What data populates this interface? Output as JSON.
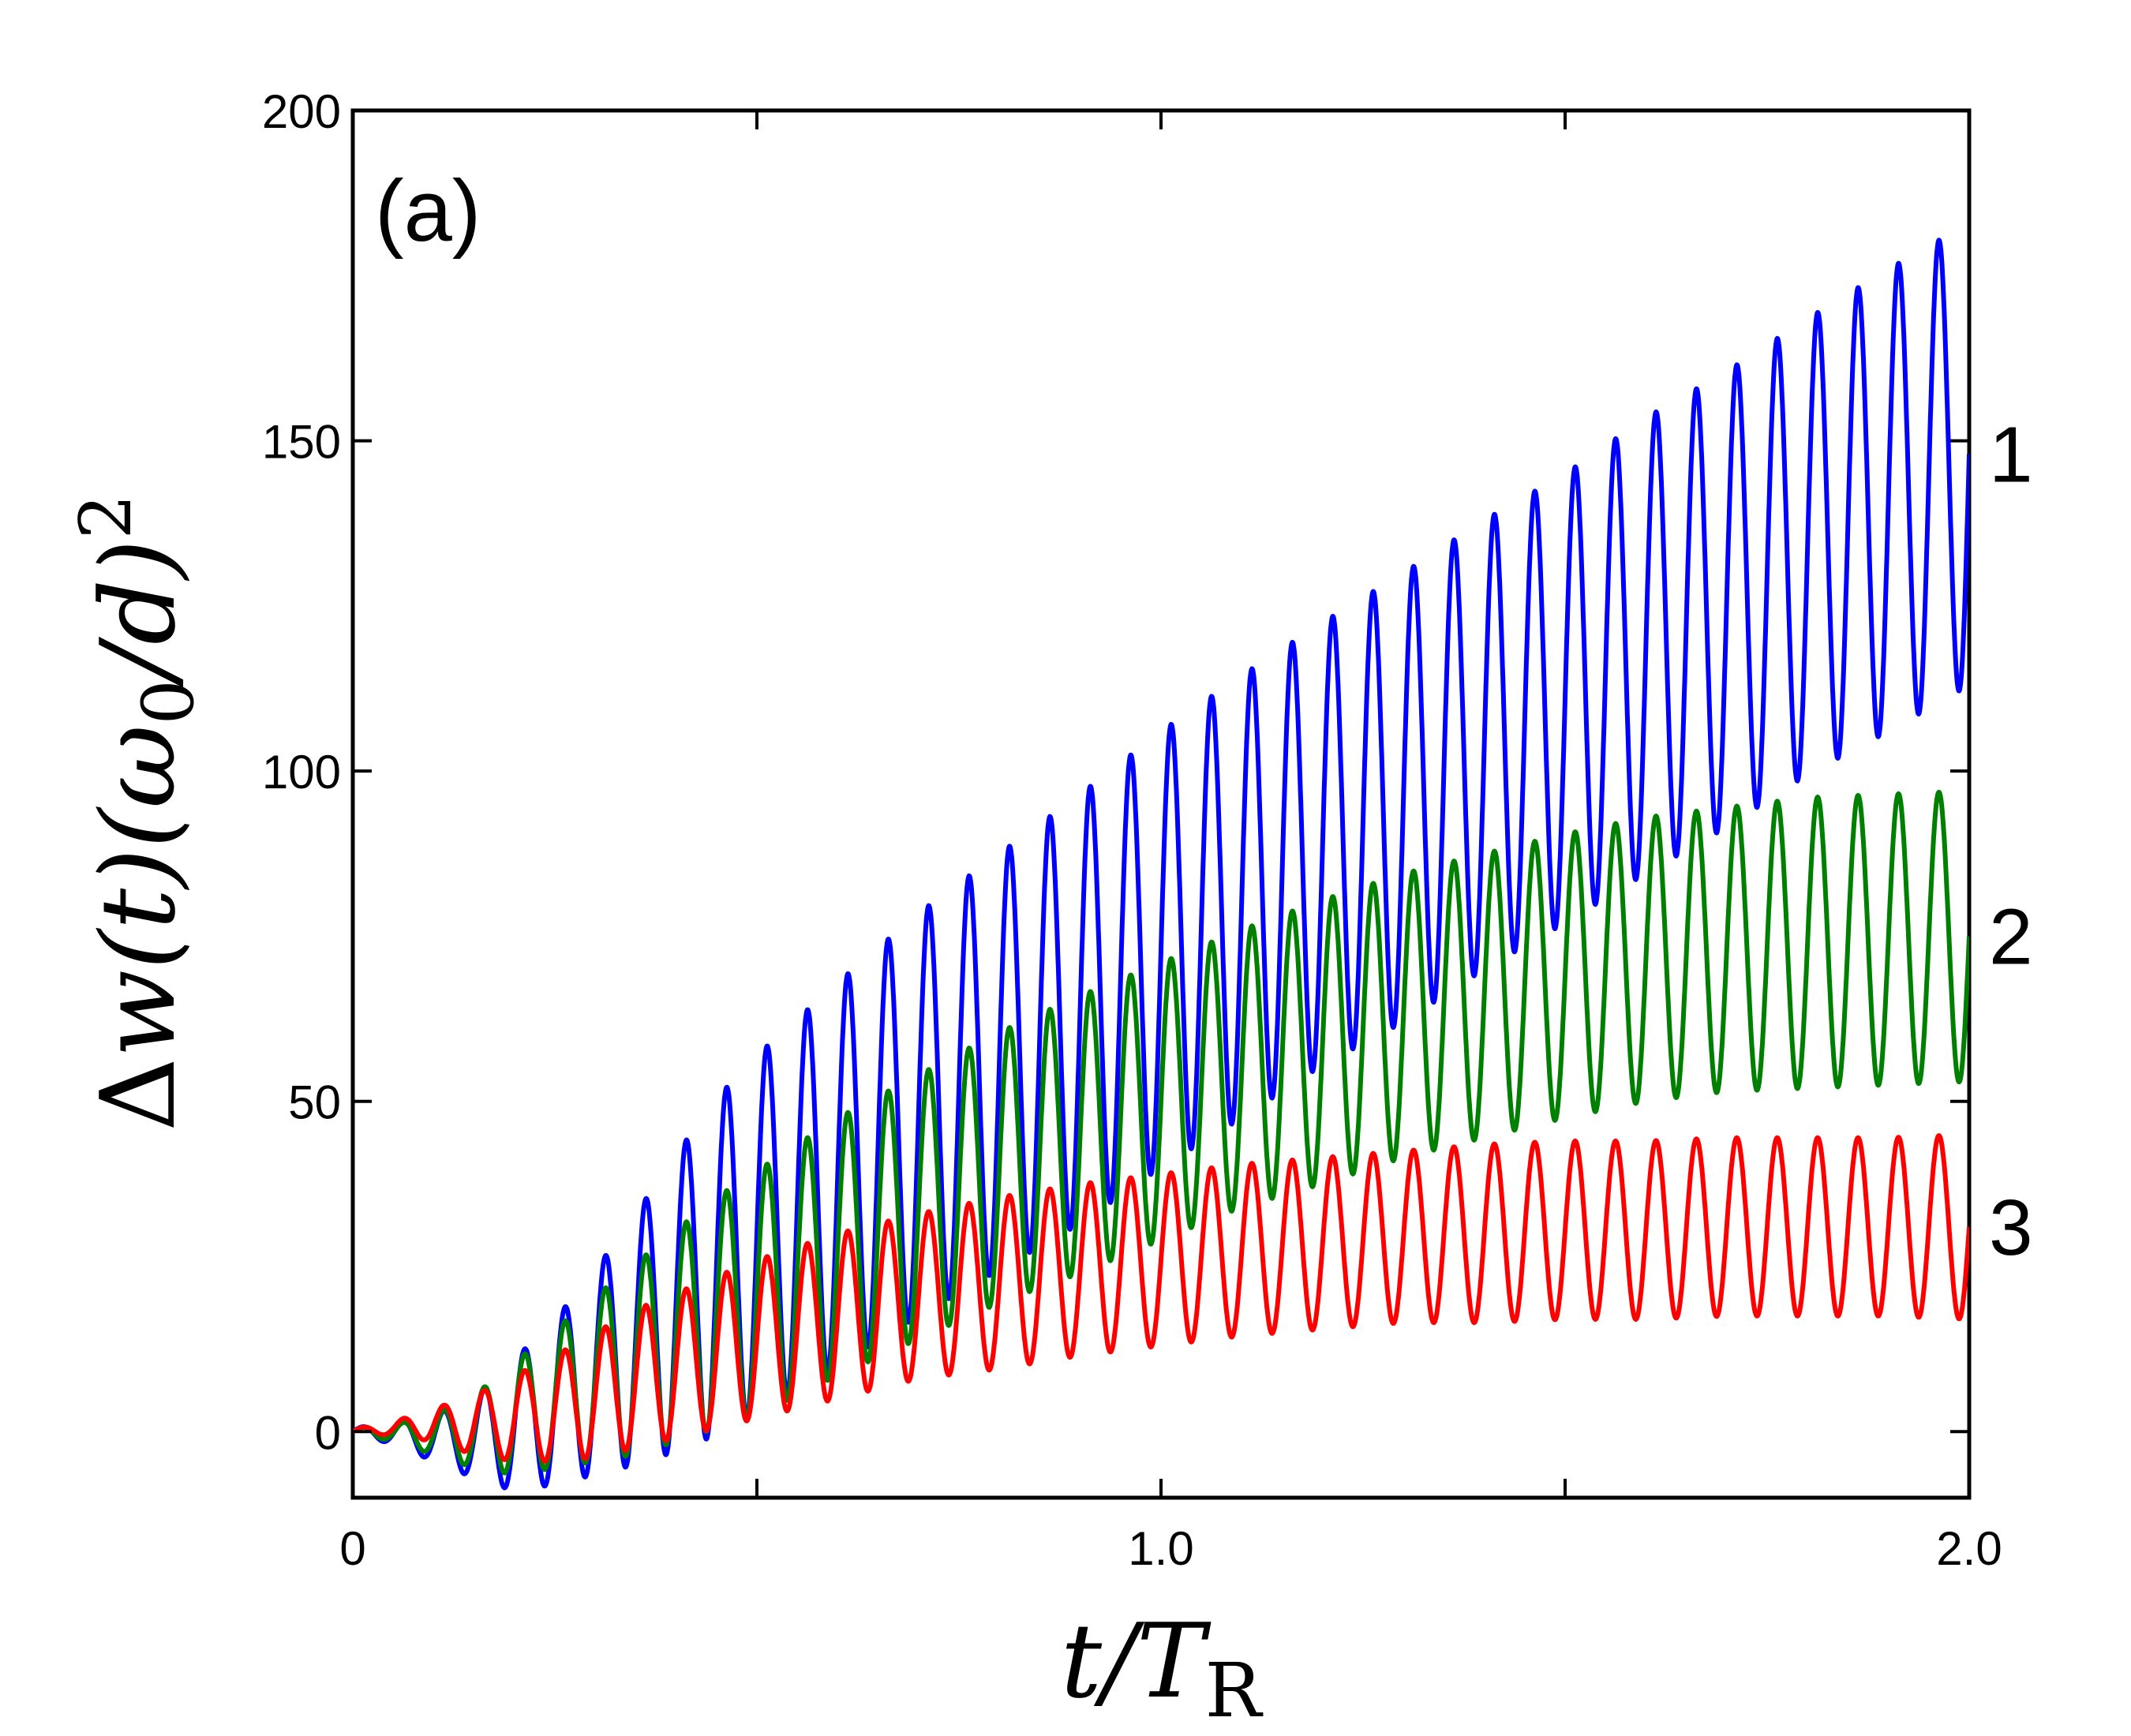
{
  "chart_data": {
    "type": "line",
    "panel_label": "(a)",
    "xlabel": "t/T_R",
    "ylabel": "Δw(t)(ω_0/d)^2",
    "xlim": [
      0,
      2.0
    ],
    "ylim": [
      -10,
      200
    ],
    "x_ticks": [
      0,
      0.5,
      1.0,
      1.5,
      2.0
    ],
    "x_tick_labels": [
      "0",
      "",
      "1.0",
      "",
      "2.0"
    ],
    "y_ticks": [
      0,
      50,
      100,
      150,
      200
    ],
    "y_tick_labels": [
      "0",
      "50",
      "100",
      "150",
      "200"
    ],
    "grid": false,
    "legend": "none",
    "oscillation_period": 0.05,
    "series": [
      {
        "name": "1",
        "color": "#0000ff",
        "x": [
          0,
          0.05,
          0.1,
          0.15,
          0.2,
          0.25,
          0.3,
          0.35,
          0.4,
          0.45,
          0.5,
          0.6,
          0.7,
          0.8,
          0.9,
          1.0,
          1.1,
          1.2,
          1.3,
          1.4,
          1.5,
          1.6,
          1.7,
          1.8,
          1.9,
          2.0
        ],
        "mean": [
          0,
          -0.3,
          -1,
          -1,
          1,
          4.5,
          9,
          14,
          19.5,
          25,
          30,
          39,
          48,
          56,
          64,
          73,
          81,
          89,
          96,
          104,
          111,
          119,
          126,
          134,
          141,
          148
        ],
        "amplitude": [
          0.6,
          1.5,
          3.5,
          6,
          10,
          12.5,
          15.5,
          19,
          22.5,
          25.5,
          27,
          29,
          30.5,
          31.5,
          32.5,
          33,
          33.5,
          33.5,
          34,
          34,
          34,
          34.5,
          34.5,
          34.5,
          35,
          35
        ]
      },
      {
        "name": "2",
        "color": "#008000",
        "x": [
          0,
          0.05,
          0.1,
          0.15,
          0.2,
          0.25,
          0.3,
          0.35,
          0.4,
          0.45,
          0.5,
          0.6,
          0.7,
          0.8,
          0.9,
          1.0,
          1.1,
          1.2,
          1.3,
          1.4,
          1.5,
          1.6,
          1.7,
          1.8,
          1.9,
          2.0
        ],
        "mean": [
          0,
          -0.2,
          -0.5,
          0,
          2,
          5,
          8,
          11,
          14.5,
          18,
          21,
          28,
          34,
          40,
          45,
          50,
          55,
          59,
          63,
          66,
          69,
          71.5,
          73,
          74,
          74.5,
          75
        ],
        "amplitude": [
          0.5,
          1.2,
          3,
          5.5,
          8.5,
          10.5,
          12.5,
          14.5,
          16,
          17.5,
          18.5,
          19.5,
          20,
          20.5,
          21,
          21,
          21,
          21.5,
          21.5,
          21.5,
          21.5,
          21.5,
          21.5,
          22,
          22,
          22
        ]
      },
      {
        "name": "3",
        "color": "#ff0000",
        "x": [
          0,
          0.05,
          0.1,
          0.15,
          0.2,
          0.25,
          0.3,
          0.35,
          0.4,
          0.45,
          0.5,
          0.6,
          0.7,
          0.8,
          0.9,
          1.0,
          1.1,
          1.2,
          1.3,
          1.4,
          1.5,
          1.6,
          1.7,
          1.8,
          1.9,
          2.0
        ],
        "mean": [
          0,
          0.5,
          1,
          1,
          2,
          3.5,
          5.5,
          8,
          10,
          12,
          14,
          17.5,
          20.5,
          22.5,
          24.5,
          26,
          27.5,
          28.5,
          29.5,
          30,
          30.5,
          30.5,
          31,
          31,
          31,
          31
        ],
        "amplitude": [
          0.4,
          1,
          2.5,
          4.5,
          6.5,
          8,
          9.5,
          10.5,
          11,
          11.5,
          12,
          12.5,
          12.5,
          13,
          13,
          13,
          13,
          13,
          13,
          13.5,
          13.5,
          13.5,
          13.5,
          13.5,
          13.5,
          14
        ]
      }
    ]
  }
}
